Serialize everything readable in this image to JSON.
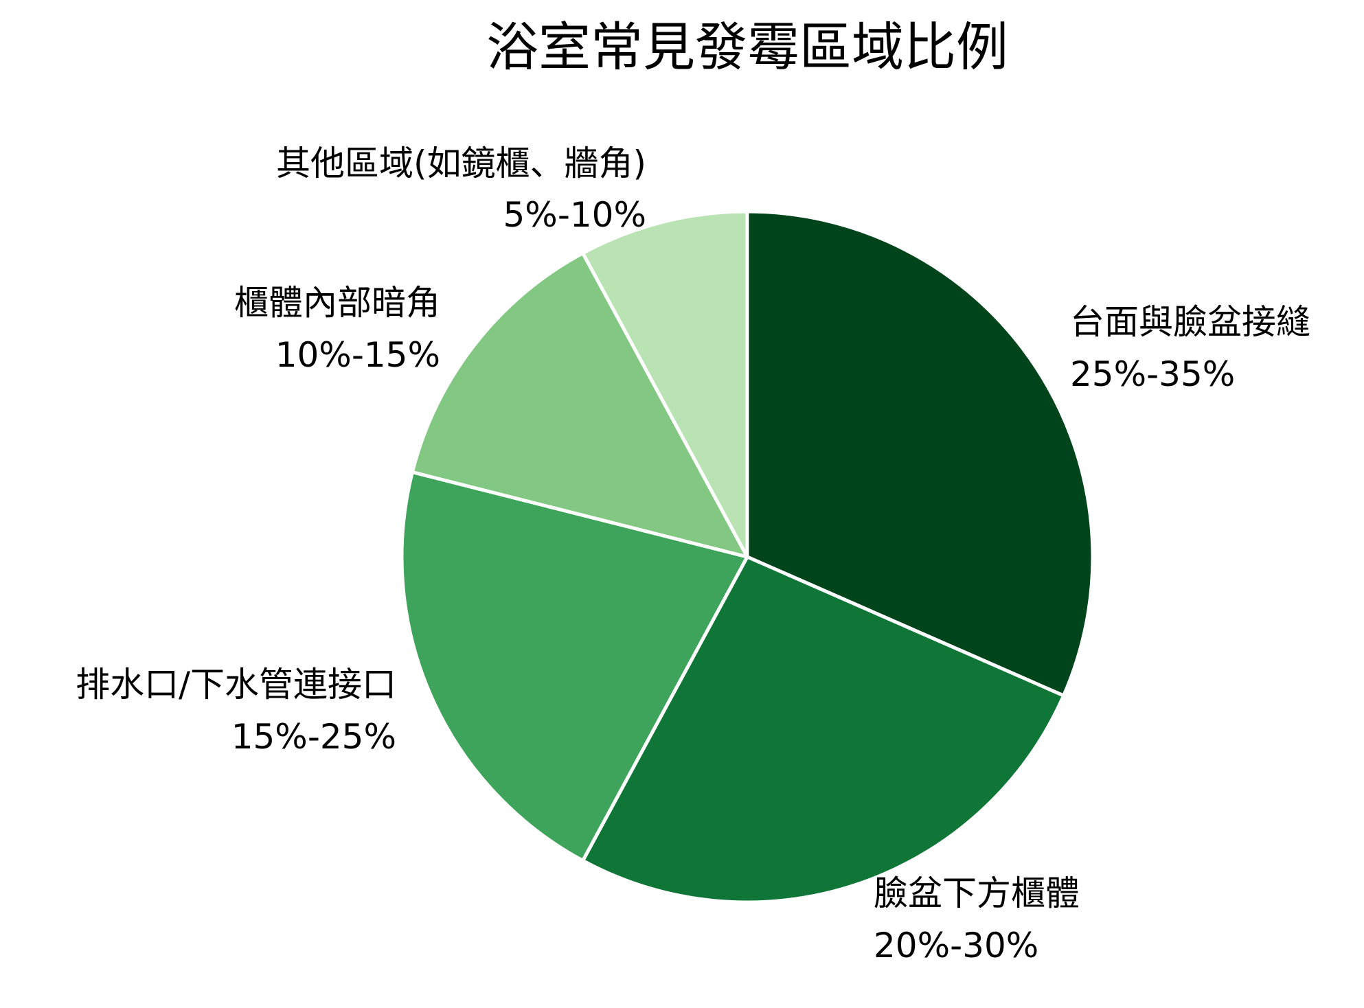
{
  "chart_data": {
    "type": "pie",
    "title": "浴室常見發霉區域比例",
    "slices": [
      {
        "label": "台面與臉盆接縫",
        "range_text": "25%-35%",
        "value": 30,
        "color": "#00441b"
      },
      {
        "label": "臉盆下方櫃體",
        "range_text": "20%-30%",
        "value": 25,
        "color": "#0f7637"
      },
      {
        "label": "排水口/下水管連接口",
        "range_text": "15%-25%",
        "value": 20,
        "color": "#3fa45b"
      },
      {
        "label": "櫃體內部暗角",
        "range_text": "10%-15%",
        "value": 12.5,
        "color": "#82c882"
      },
      {
        "label": "其他區域(如鏡櫃、牆角)",
        "range_text": "5%-10%",
        "value": 7.5,
        "color": "#b9e3b3"
      }
    ],
    "start_angle": "12 o'clock",
    "direction": "clockwise",
    "separator_color": "#ffffff",
    "legend": "none"
  }
}
